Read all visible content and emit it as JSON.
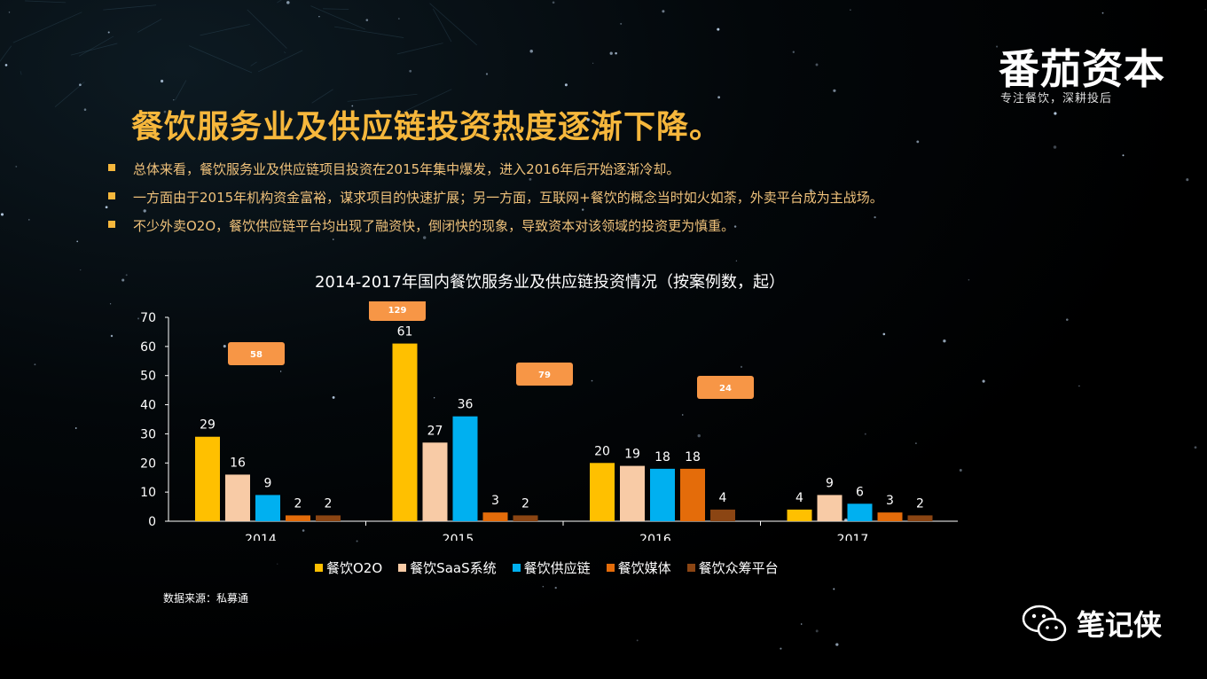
{
  "brand": {
    "logo_text": "番茄资本",
    "tagline": "专注餐饮，深耕投后"
  },
  "slide": {
    "title": "餐饮服务业及供应链投资热度逐渐下降。",
    "bullets": [
      "总体来看，餐饮服务业及供应链项目投资在2015年集中爆发，进入2016年后开始逐渐冷却。",
      "一方面由于2015年机构资金富裕，谋求项目的快速扩展；另一方面，互联网+餐饮的概念当时如火如荼，外卖平台成为主战场。",
      "不少外卖O2O，餐饮供应链平台均出现了融资快，倒闭快的现象，导致资本对该领域的投资更为慎重。"
    ],
    "source": "数据来源：私募通"
  },
  "watermark": {
    "text": "笔记侠",
    "icon": "wechat-icon"
  },
  "chart_data": {
    "type": "bar",
    "title": "2014-2017年国内餐饮服务业及供应链投资情况（按案例数，起）",
    "categories": [
      "2014",
      "2015",
      "2016",
      "2017"
    ],
    "series": [
      {
        "name": "餐饮O2O",
        "color": "#ffc000",
        "values": [
          29,
          61,
          20,
          4
        ]
      },
      {
        "name": "餐饮SaaS系统",
        "color": "#f8cba6",
        "values": [
          16,
          27,
          19,
          9
        ]
      },
      {
        "name": "餐饮供应链",
        "color": "#00b0f0",
        "values": [
          9,
          36,
          18,
          6
        ]
      },
      {
        "name": "餐饮媒体",
        "color": "#e46c0a",
        "values": [
          2,
          3,
          18,
          3
        ]
      },
      {
        "name": "餐饮众筹平台",
        "color": "#8b4513",
        "values": [
          2,
          2,
          4,
          2
        ]
      }
    ],
    "totals": [
      58,
      129,
      79,
      24
    ],
    "total_label_color": "#f79646",
    "ylim": [
      0,
      70
    ],
    "yticks": [
      0,
      10,
      20,
      30,
      40,
      50,
      60,
      70
    ],
    "xlabel": "",
    "ylabel": "",
    "grid": false,
    "legend_position": "bottom"
  }
}
